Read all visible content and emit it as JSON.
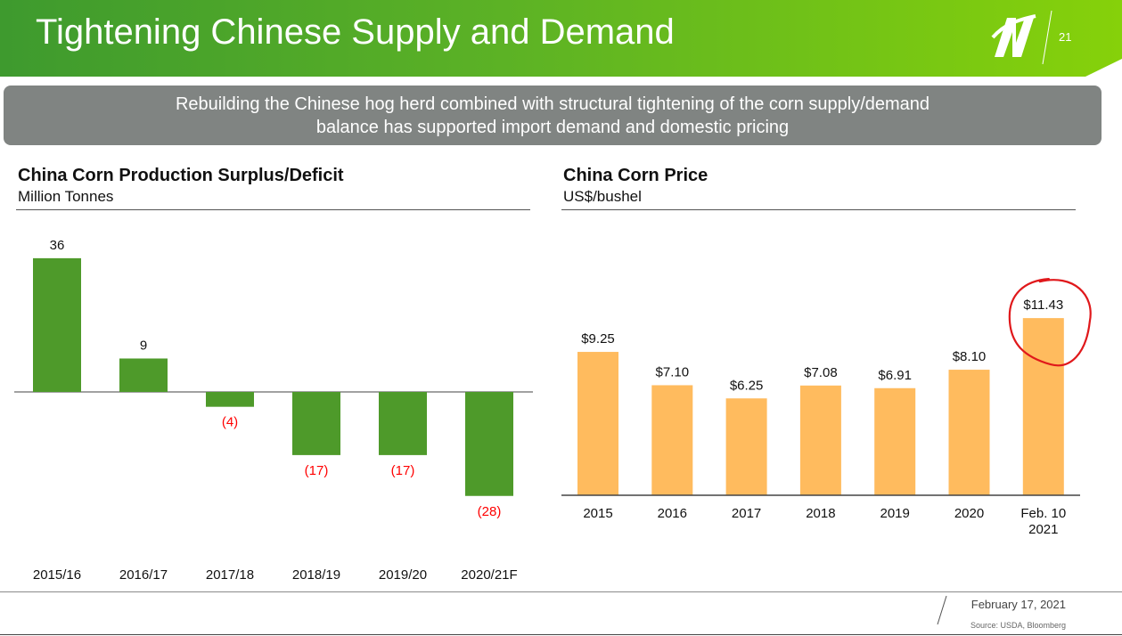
{
  "slide": {
    "title": "Tightening Chinese Supply and Demand",
    "page_number": "21",
    "banner_line1": "Rebuilding the Chinese hog herd combined with structural tightening of the corn supply/demand",
    "banner_line2": "balance has supported import demand and domestic pricing"
  },
  "footer": {
    "date": "February 17, 2021",
    "source": "Source: USDA, Bloomberg"
  },
  "colors": {
    "header_green": "#5cb225",
    "surplus_bar": "#4e9a2a",
    "price_bar": "#ffbb5e",
    "negative_label": "#ff0000",
    "highlight_circle": "#e0181b",
    "banner_gray": "#808482"
  },
  "icons": {
    "logo": "company-logo-icon"
  },
  "chart_data": [
    {
      "type": "bar",
      "title": "China Corn Production Surplus/Deficit",
      "ylabel": "Million Tonnes",
      "xlabel": "",
      "categories": [
        "2015/16",
        "2016/17",
        "2017/18",
        "2018/19",
        "2019/20",
        "2020/21F"
      ],
      "values": [
        36,
        9,
        -4,
        -17,
        -17,
        -28
      ],
      "labels": [
        "36",
        "9",
        "(4)",
        "(17)",
        "(17)",
        "(28)"
      ],
      "ylim": [
        -30,
        40
      ],
      "grid": false,
      "legend": "none"
    },
    {
      "type": "bar",
      "title": "China Corn Price",
      "ylabel": "US$/bushel",
      "xlabel": "",
      "categories": [
        "2015",
        "2016",
        "2017",
        "2018",
        "2019",
        "2020",
        "Feb. 10 2021"
      ],
      "values": [
        9.25,
        7.1,
        6.25,
        7.08,
        6.91,
        8.1,
        11.43
      ],
      "labels": [
        "$9.25",
        "$7.10",
        "$6.25",
        "$7.08",
        "$6.91",
        "$8.10",
        "$11.43"
      ],
      "ylim": [
        0,
        12
      ],
      "highlight": "$11.43",
      "grid": false,
      "legend": "none"
    }
  ]
}
